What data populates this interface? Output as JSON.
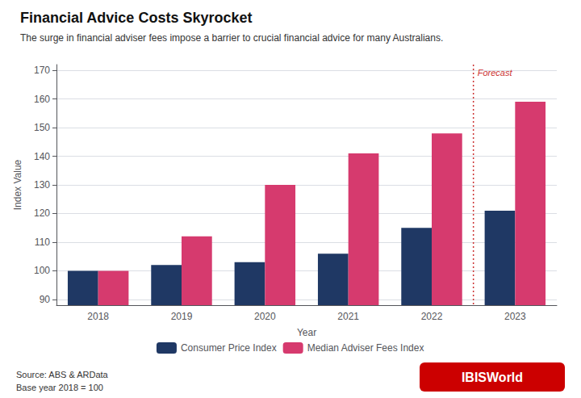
{
  "chart_data": {
    "type": "bar",
    "title": "Financial Advice Costs Skyrocket",
    "subtitle": "The surge in financial adviser fees impose a barrier to crucial financial advice for many Australians.",
    "xlabel": "Year",
    "ylabel": "Index Value",
    "categories": [
      "2018",
      "2019",
      "2020",
      "2021",
      "2022",
      "2023"
    ],
    "series": [
      {
        "name": "Consumer Price Index",
        "color": "#1f3864",
        "values": [
          100,
          102,
          103,
          106,
          115,
          121
        ]
      },
      {
        "name": "Median Adviser Fees Index",
        "color": "#d63a6e",
        "values": [
          100,
          112,
          130,
          141,
          148,
          159
        ]
      }
    ],
    "ylim": [
      88,
      172
    ],
    "yticks": [
      90,
      100,
      110,
      120,
      130,
      140,
      150,
      160,
      170
    ],
    "grid": true,
    "legend": "bottom",
    "annotations": [
      {
        "text": "Forecast",
        "color": "#cc3333",
        "between": [
          "2022",
          "2023"
        ]
      }
    ],
    "source": [
      "Source: ABS & ARData",
      "Base year 2018 = 100"
    ],
    "logo": {
      "text": "IBISWorld",
      "color": "#cc0000"
    }
  }
}
